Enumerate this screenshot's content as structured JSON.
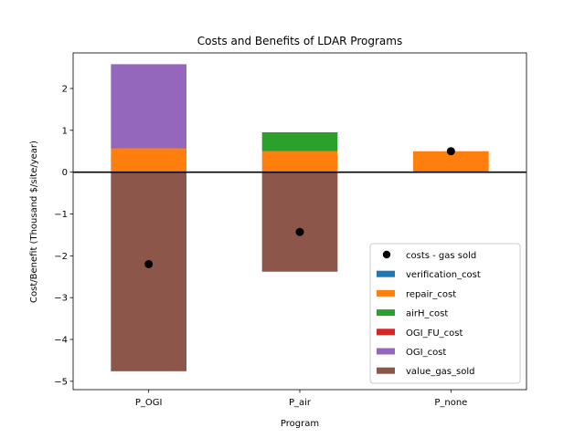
{
  "chart_data": {
    "type": "bar",
    "stacked": true,
    "title": "Costs and Benefits of LDAR Programs",
    "xlabel": "Program",
    "ylabel": "Cost/Benefit (Thousand $/site/year)",
    "categories": [
      "P_OGI",
      "P_air",
      "P_none"
    ],
    "ylim": [
      -5.2,
      2.85
    ],
    "yticks": [
      -5,
      -4,
      -3,
      -2,
      -1,
      0,
      1,
      2
    ],
    "ytick_labels": [
      "−5",
      "−4",
      "−3",
      "−2",
      "−1",
      "0",
      "1",
      "2"
    ],
    "series": [
      {
        "name": "verification_cost",
        "color": "#1f77b4",
        "values": [
          0,
          0,
          0
        ]
      },
      {
        "name": "repair_cost",
        "color": "#ff7f0e",
        "values": [
          0.57,
          0.5,
          0.5
        ]
      },
      {
        "name": "airH_cost",
        "color": "#2ca02c",
        "values": [
          0,
          0.43,
          0
        ]
      },
      {
        "name": "OGI_FU_cost",
        "color": "#d62728",
        "values": [
          0,
          0.02,
          0
        ]
      },
      {
        "name": "OGI_cost",
        "color": "#9467bd",
        "values": [
          2.01,
          0,
          0
        ]
      },
      {
        "name": "value_gas_sold",
        "color": "#8c564b",
        "values": [
          -4.76,
          -2.38,
          0
        ]
      }
    ],
    "scatter": {
      "name": "costs - gas sold",
      "color": "#000000",
      "values": [
        -2.2,
        -1.43,
        0.5
      ]
    },
    "zero_line": true,
    "grid": false,
    "legend_position": "lower-right"
  }
}
